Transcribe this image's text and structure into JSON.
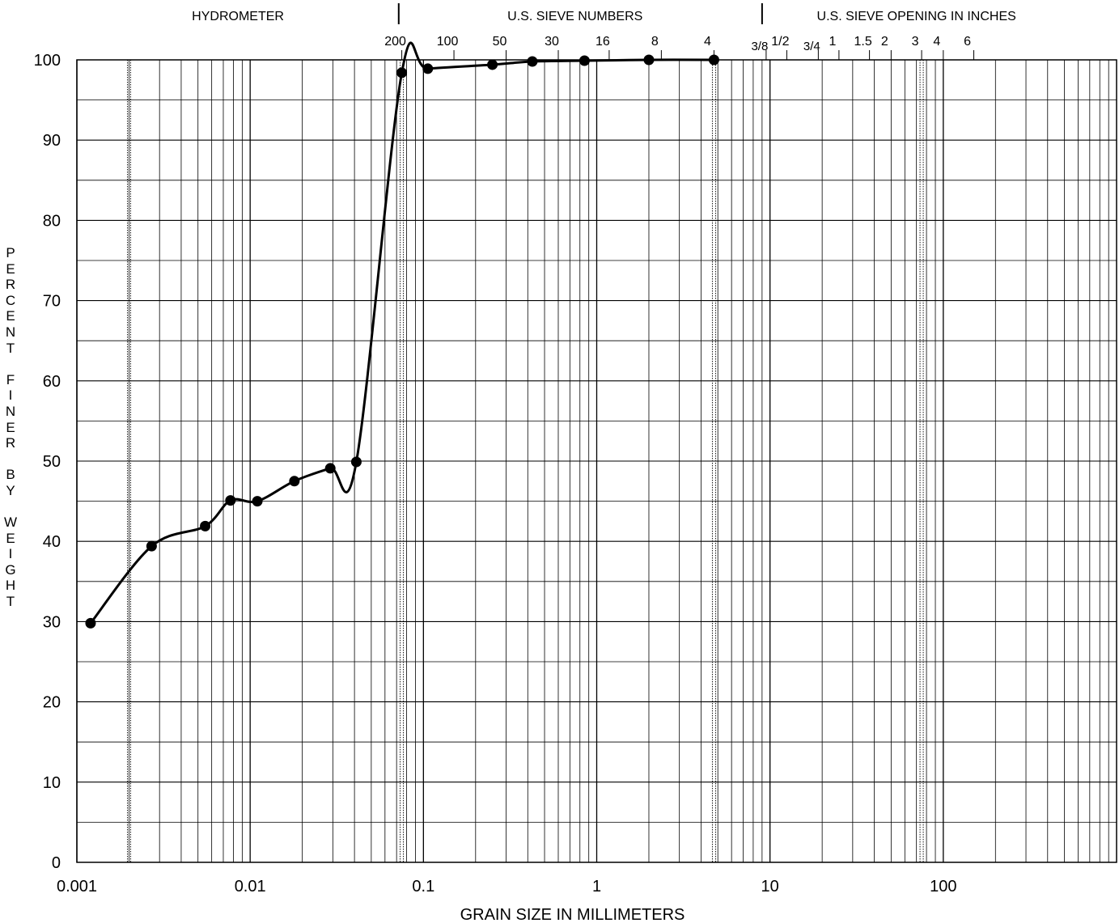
{
  "chart_data": {
    "type": "line",
    "title": "",
    "xlabel": "GRAIN SIZE IN MILLIMETERS",
    "ylabel": "PERCENT FINER BY WEIGHT",
    "ylabel_display": "P\nE\nR\nC\nE\nN\nT\n \nF\nI\nN\nE\nR\n \nB\nY\n \nW\nE\nI\nG\nH\nT",
    "x_scale": "log",
    "xlim": [
      0.001,
      1000
    ],
    "ylim": [
      0,
      100
    ],
    "grid": true,
    "legend": "none",
    "x_ticks": [
      {
        "value": 0.001,
        "label": "0.001"
      },
      {
        "value": 0.01,
        "label": "0.01"
      },
      {
        "value": 0.1,
        "label": "0.1"
      },
      {
        "value": 1,
        "label": "1"
      },
      {
        "value": 10,
        "label": "10"
      },
      {
        "value": 100,
        "label": "100"
      }
    ],
    "y_ticks": [
      {
        "value": 0,
        "label": "0"
      },
      {
        "value": 10,
        "label": "10"
      },
      {
        "value": 20,
        "label": "20"
      },
      {
        "value": 30,
        "label": "30"
      },
      {
        "value": 40,
        "label": "40"
      },
      {
        "value": 50,
        "label": "50"
      },
      {
        "value": 60,
        "label": "60"
      },
      {
        "value": 70,
        "label": "70"
      },
      {
        "value": 80,
        "label": "80"
      },
      {
        "value": 90,
        "label": "90"
      },
      {
        "value": 100,
        "label": "100"
      }
    ],
    "top_sections": [
      {
        "label": "HYDROMETER",
        "center": 0.0085
      },
      {
        "label": "U.S. SIEVE NUMBERS",
        "center": 0.75
      },
      {
        "label": "U.S. SIEVE OPENING IN INCHES",
        "center": 70
      }
    ],
    "section_dividers": [
      0.072,
      9.0
    ],
    "sieve_numbers": [
      {
        "label": "200",
        "size_mm": 0.075
      },
      {
        "label": "100",
        "size_mm": 0.15
      },
      {
        "label": "50",
        "size_mm": 0.3
      },
      {
        "label": "30",
        "size_mm": 0.6
      },
      {
        "label": "16",
        "size_mm": 1.18
      },
      {
        "label": "8",
        "size_mm": 2.36
      },
      {
        "label": "4",
        "size_mm": 4.75
      }
    ],
    "sieve_openings": [
      {
        "label": "3/8",
        "size_mm": 9.5
      },
      {
        "label": "1/2",
        "size_mm": 12.5
      },
      {
        "label": "3/4",
        "size_mm": 19
      },
      {
        "label": "1",
        "size_mm": 25
      },
      {
        "label": "1.5",
        "size_mm": 37.5
      },
      {
        "label": "2",
        "size_mm": 50
      },
      {
        "label": "3",
        "size_mm": 75
      },
      {
        "label": "4",
        "size_mm": 100
      },
      {
        "label": "6",
        "size_mm": 150
      }
    ],
    "dotted_reference_lines": [
      0.002,
      0.075,
      4.75,
      75
    ],
    "series": [
      {
        "color": "#000000",
        "x": [
          0.0012,
          0.0027,
          0.0055,
          0.0077,
          0.011,
          0.018,
          0.029,
          0.041,
          0.075,
          0.106,
          0.25,
          0.425,
          0.85,
          2.0,
          4.75
        ],
        "y": [
          29.8,
          39.4,
          41.9,
          45.1,
          45.0,
          47.5,
          49.1,
          49.9,
          98.4,
          98.9,
          99.4,
          99.8,
          99.9,
          100,
          100
        ]
      }
    ]
  }
}
